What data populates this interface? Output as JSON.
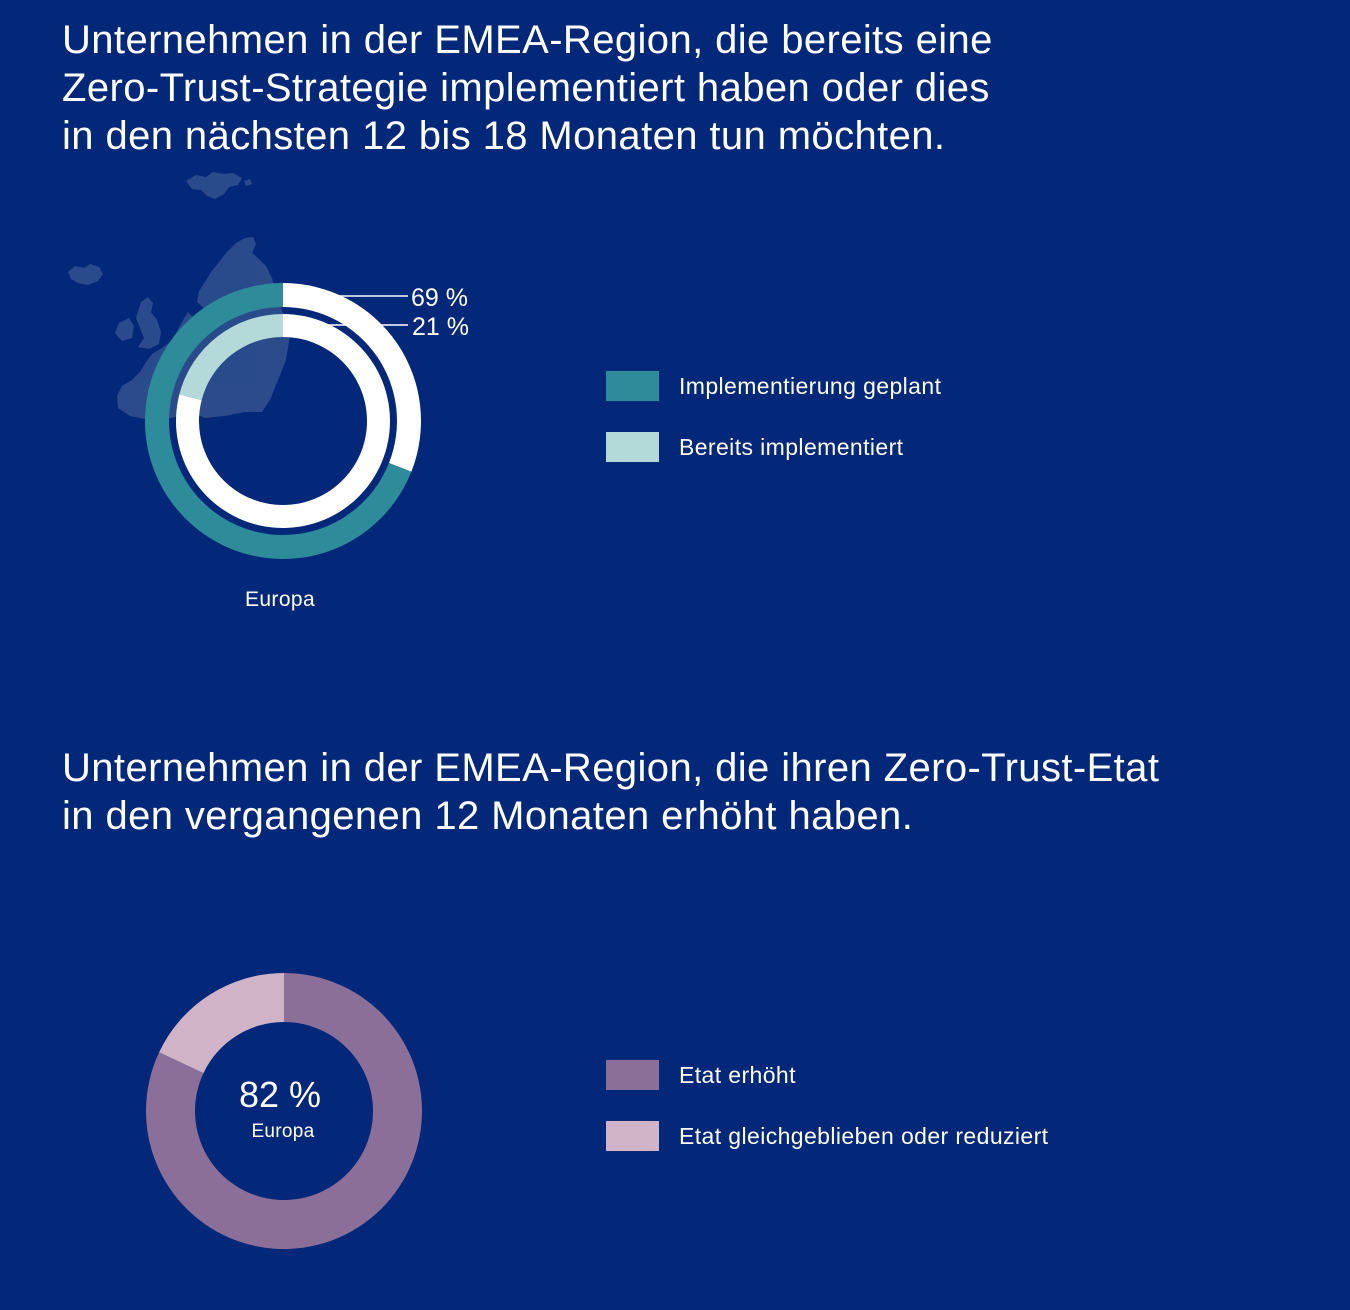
{
  "colors": {
    "background": "#03287a",
    "text": "#ffffff",
    "remainder": "#ffffff",
    "map": "#2d4d8c"
  },
  "chart_data": [
    {
      "type": "pie",
      "title_lines": [
        "Unternehmen in der EMEA-Region, die bereits eine",
        "Zero-Trust-Strategie implementiert haben oder dies",
        "in den nächsten 12 bis 18 Monaten tun möchten."
      ],
      "region_label": "Europa",
      "rings": [
        {
          "name": "Implementierung geplant",
          "value": 69,
          "value_label": "69 %",
          "color": "#2e8c9a"
        },
        {
          "name": "Bereits implementiert",
          "value": 21,
          "value_label": "21 %",
          "color": "#b3dad9"
        }
      ]
    },
    {
      "type": "pie",
      "title_lines": [
        "Unternehmen in der EMEA-Region, die ihren Zero-Trust-Etat",
        "in den vergangenen 12 Monaten erhöht haben."
      ],
      "center_value": "82 %",
      "center_label": "Europa",
      "slices": [
        {
          "name": "Etat erhöht",
          "value": 82,
          "color": "#8b6f98"
        },
        {
          "name": "Etat gleichgeblieben oder reduziert",
          "value": 18,
          "color": "#d0b3c6"
        }
      ]
    }
  ]
}
